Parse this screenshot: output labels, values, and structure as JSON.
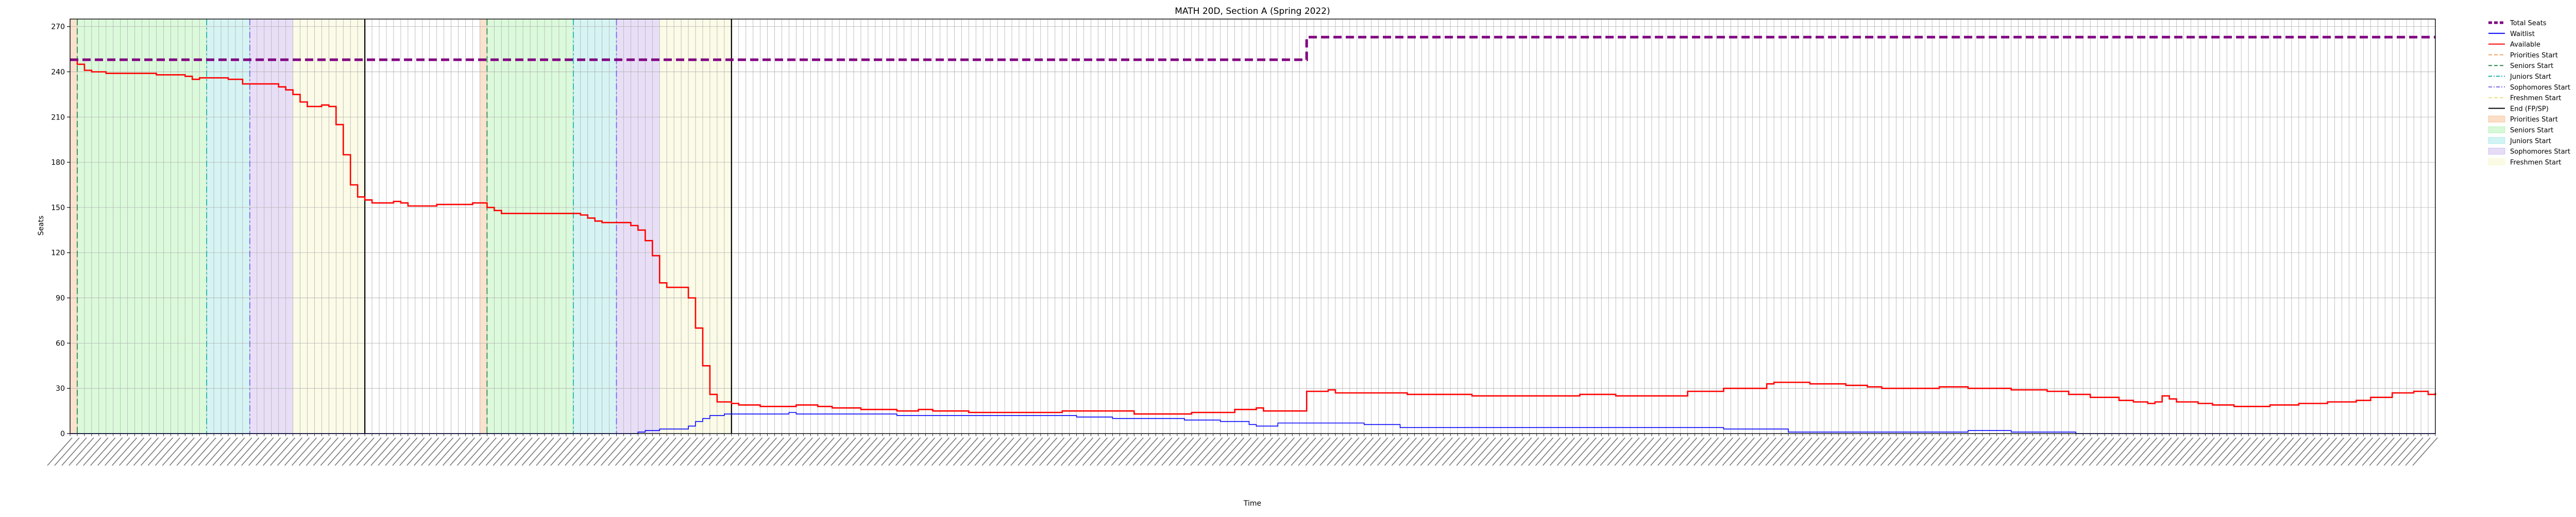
{
  "chart_data": {
    "type": "line",
    "title": "MATH 20D, Section A (Spring 2022)",
    "xlabel": "Time",
    "ylabel": "Seats",
    "ylim": [
      0,
      275
    ],
    "yticks": [
      0,
      30,
      60,
      90,
      120,
      150,
      180,
      210,
      240,
      270
    ],
    "x_count": 330,
    "grid": true,
    "legend_position": "outside upper right",
    "xtick_labels_note": "330 rotated timestamp labels (illegible at this resolution), spanning early Feb 2022 to late Apr 2022",
    "legend": [
      {
        "label": "Total Seats",
        "kind": "line",
        "color": "#800080",
        "dash": "dashed"
      },
      {
        "label": "Waitlist",
        "kind": "line",
        "color": "#0000ff"
      },
      {
        "label": "Available",
        "kind": "line",
        "color": "#ff0000"
      },
      {
        "label": "Priorities Start",
        "kind": "vline",
        "color": "#f4a460",
        "dash": "dashed"
      },
      {
        "label": "Seniors Start",
        "kind": "vline",
        "color": "#2e8b57",
        "dash": "dashed"
      },
      {
        "label": "Juniors Start",
        "kind": "vline",
        "color": "#20b2aa",
        "dash": "dashdot"
      },
      {
        "label": "Sophomores Start",
        "kind": "vline",
        "color": "#7b68ee",
        "dash": "dashdot"
      },
      {
        "label": "Freshmen Start",
        "kind": "vline",
        "color": "#eedd82",
        "dash": "dashed"
      },
      {
        "label": "End (FP/SP)",
        "kind": "vline",
        "color": "#000000"
      },
      {
        "label": "Priorities Start",
        "kind": "span",
        "color": "#f4a460"
      },
      {
        "label": "Seniors Start",
        "kind": "span",
        "color": "#90ee90"
      },
      {
        "label": "Juniors Start",
        "kind": "span",
        "color": "#7fdcdc"
      },
      {
        "label": "Sophomores Start",
        "kind": "span",
        "color": "#b69ae6"
      },
      {
        "label": "Freshmen Start",
        "kind": "span",
        "color": "#f3f3b4"
      }
    ],
    "phases": [
      {
        "name": "Priorities Start",
        "from": 0,
        "to": 1,
        "color": "#f4a460"
      },
      {
        "name": "Seniors Start",
        "from": 1,
        "to": 19,
        "color": "#90ee90"
      },
      {
        "name": "Juniors Start",
        "from": 19,
        "to": 25,
        "color": "#7fdcdc"
      },
      {
        "name": "Sophomores Start",
        "from": 25,
        "to": 31,
        "color": "#b69ae6"
      },
      {
        "name": "Freshmen Start",
        "from": 31,
        "to": 41,
        "color": "#f3f3b4"
      },
      {
        "name": "Priorities Start",
        "from": 57,
        "to": 58,
        "color": "#f4a460"
      },
      {
        "name": "Seniors Start",
        "from": 58,
        "to": 70,
        "color": "#90ee90"
      },
      {
        "name": "Juniors Start",
        "from": 70,
        "to": 76,
        "color": "#7fdcdc"
      },
      {
        "name": "Sophomores Start",
        "from": 76,
        "to": 82,
        "color": "#b69ae6"
      },
      {
        "name": "Freshmen Start",
        "from": 82,
        "to": 92,
        "color": "#f3f3b4"
      }
    ],
    "vlines": [
      {
        "x": 1,
        "color": "#2e8b57",
        "dash": "dashed"
      },
      {
        "x": 19,
        "color": "#20b2aa",
        "dash": "dashdot"
      },
      {
        "x": 25,
        "color": "#7b68ee",
        "dash": "dashdot"
      },
      {
        "x": 41,
        "color": "#000000",
        "dash": "solid"
      },
      {
        "x": 58,
        "color": "#2e8b57",
        "dash": "dashed"
      },
      {
        "x": 70,
        "color": "#20b2aa",
        "dash": "dashdot"
      },
      {
        "x": 76,
        "color": "#7b68ee",
        "dash": "dashdot"
      },
      {
        "x": 92,
        "color": "#000000",
        "dash": "solid"
      }
    ],
    "series": [
      {
        "name": "Total Seats",
        "color": "#800080",
        "style": "dashed",
        "points": [
          [
            0,
            248
          ],
          [
            171,
            248
          ],
          [
            172,
            263
          ],
          [
            329,
            263
          ]
        ]
      },
      {
        "name": "Available",
        "color": "#ff0000",
        "style": "solid",
        "points": [
          [
            0,
            248
          ],
          [
            1,
            245
          ],
          [
            2,
            241
          ],
          [
            3,
            240
          ],
          [
            5,
            239
          ],
          [
            10,
            239
          ],
          [
            12,
            238
          ],
          [
            14,
            238
          ],
          [
            16,
            237
          ],
          [
            17,
            235
          ],
          [
            18,
            236
          ],
          [
            21,
            236
          ],
          [
            22,
            235
          ],
          [
            24,
            232
          ],
          [
            28,
            232
          ],
          [
            29,
            230
          ],
          [
            30,
            228
          ],
          [
            31,
            225
          ],
          [
            32,
            220
          ],
          [
            33,
            217
          ],
          [
            35,
            218
          ],
          [
            36,
            217
          ],
          [
            37,
            205
          ],
          [
            38,
            185
          ],
          [
            39,
            165
          ],
          [
            40,
            157
          ],
          [
            41,
            155
          ],
          [
            42,
            153
          ],
          [
            44,
            153
          ],
          [
            45,
            154
          ],
          [
            46,
            153
          ],
          [
            47,
            151
          ],
          [
            50,
            151
          ],
          [
            51,
            152
          ],
          [
            55,
            152
          ],
          [
            56,
            153
          ],
          [
            57,
            153
          ],
          [
            58,
            150
          ],
          [
            59,
            148
          ],
          [
            60,
            146
          ],
          [
            66,
            146
          ],
          [
            71,
            145
          ],
          [
            72,
            143
          ],
          [
            73,
            141
          ],
          [
            74,
            140
          ],
          [
            77,
            140
          ],
          [
            78,
            138
          ],
          [
            79,
            135
          ],
          [
            80,
            128
          ],
          [
            81,
            118
          ],
          [
            82,
            100
          ],
          [
            83,
            97
          ],
          [
            85,
            97
          ],
          [
            86,
            90
          ],
          [
            87,
            70
          ],
          [
            88,
            45
          ],
          [
            89,
            26
          ],
          [
            90,
            21
          ],
          [
            92,
            20
          ],
          [
            93,
            19
          ],
          [
            95,
            19
          ],
          [
            96,
            18
          ],
          [
            100,
            18
          ],
          [
            101,
            19
          ],
          [
            103,
            19
          ],
          [
            104,
            18
          ],
          [
            106,
            17
          ],
          [
            110,
            16
          ],
          [
            115,
            15
          ],
          [
            118,
            16
          ],
          [
            120,
            15
          ],
          [
            125,
            14
          ],
          [
            130,
            14
          ],
          [
            138,
            15
          ],
          [
            144,
            15
          ],
          [
            148,
            13
          ],
          [
            156,
            14
          ],
          [
            162,
            16
          ],
          [
            165,
            17
          ],
          [
            166,
            15
          ],
          [
            169,
            15
          ],
          [
            170,
            15
          ],
          [
            171,
            15
          ],
          [
            172,
            28
          ],
          [
            175,
            29
          ],
          [
            176,
            27
          ],
          [
            185,
            27
          ],
          [
            186,
            26
          ],
          [
            195,
            25
          ],
          [
            210,
            26
          ],
          [
            215,
            25
          ],
          [
            225,
            28
          ],
          [
            230,
            30
          ],
          [
            236,
            33
          ],
          [
            237,
            34
          ],
          [
            242,
            33
          ],
          [
            247,
            32
          ],
          [
            250,
            31
          ],
          [
            252,
            30
          ],
          [
            260,
            31
          ],
          [
            264,
            30
          ],
          [
            270,
            29
          ],
          [
            275,
            28
          ],
          [
            278,
            26
          ],
          [
            281,
            24
          ],
          [
            285,
            22
          ],
          [
            287,
            21
          ],
          [
            289,
            20
          ],
          [
            290,
            21
          ],
          [
            291,
            25
          ],
          [
            292,
            23
          ],
          [
            293,
            21
          ],
          [
            296,
            20
          ],
          [
            298,
            19
          ],
          [
            301,
            18
          ],
          [
            303,
            18
          ],
          [
            306,
            19
          ],
          [
            310,
            20
          ],
          [
            314,
            21
          ],
          [
            318,
            22
          ],
          [
            320,
            24
          ],
          [
            323,
            27
          ],
          [
            326,
            28
          ],
          [
            328,
            26
          ],
          [
            329,
            27
          ]
        ]
      },
      {
        "name": "Waitlist",
        "color": "#0000ff",
        "style": "solid",
        "points": [
          [
            0,
            0
          ],
          [
            78,
            0
          ],
          [
            79,
            1
          ],
          [
            80,
            2
          ],
          [
            82,
            3
          ],
          [
            85,
            3
          ],
          [
            86,
            5
          ],
          [
            87,
            8
          ],
          [
            88,
            10
          ],
          [
            89,
            12
          ],
          [
            91,
            13
          ],
          [
            100,
            14
          ],
          [
            101,
            13
          ],
          [
            110,
            13
          ],
          [
            115,
            12
          ],
          [
            130,
            12
          ],
          [
            140,
            11
          ],
          [
            145,
            10
          ],
          [
            155,
            9
          ],
          [
            160,
            8
          ],
          [
            163,
            8
          ],
          [
            164,
            6
          ],
          [
            165,
            5
          ],
          [
            168,
            7
          ],
          [
            180,
            6
          ],
          [
            185,
            4
          ],
          [
            200,
            4
          ],
          [
            230,
            3
          ],
          [
            238,
            3
          ],
          [
            239,
            1
          ],
          [
            260,
            1
          ],
          [
            264,
            2
          ],
          [
            270,
            1
          ],
          [
            278,
            1
          ],
          [
            279,
            0
          ],
          [
            329,
            0
          ]
        ]
      }
    ]
  }
}
